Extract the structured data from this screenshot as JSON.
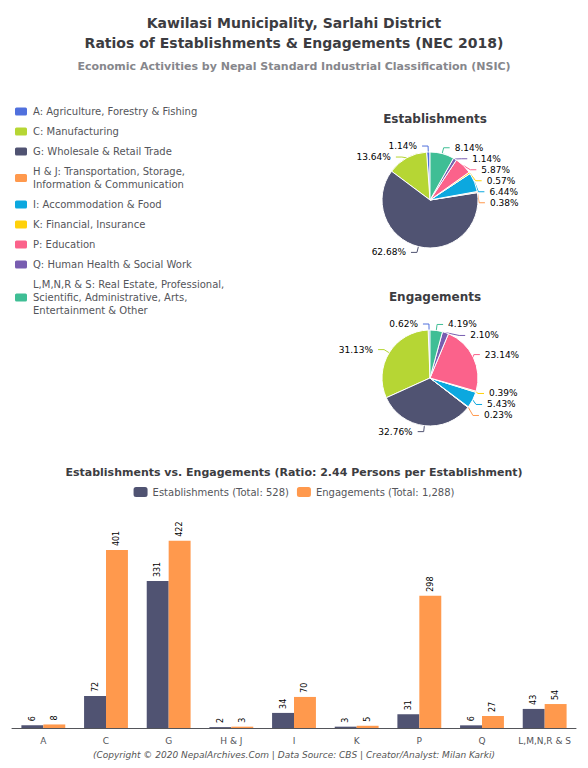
{
  "title": "Kawilasi Municipality, Sarlahi District\nRatios of Establishments & Engagements (NEC 2018)",
  "subtitle": "Economic Activities by Nepal Standard Industrial Classification (NSIC)",
  "annotations": [
    "(Copyright © 2020 NepalArchives.Com | Data Source: CBS | Creator/Analyst: Milan Karki)"
  ],
  "chart_data": [
    {
      "type": "pie",
      "title": "Establishments",
      "categories": [
        "A: Agriculture, Forestry & Fishing",
        "C: Manufacturing",
        "G: Wholesale & Retail Trade",
        "H & J: Transportation, Storage,\nInformation & Communication",
        "I: Accommodation & Food",
        "K: Financial, Insurance",
        "P: Education",
        "Q: Human Health & Social Work",
        "L,M,N,R & S: Real Estate, Professional,\nScientific, Administrative, Arts,\nEntertainment & Other"
      ],
      "values": [
        1.14,
        13.64,
        62.68,
        0.38,
        6.44,
        0.57,
        5.87,
        1.14,
        8.14
      ],
      "value_labels": [
        "1.14%",
        "13.64%",
        "62.68%",
        "0.38%",
        "6.44%",
        "0.57%",
        "5.87%",
        "1.14%",
        "8.14%"
      ],
      "data_labels": true,
      "legend": "left"
    },
    {
      "type": "pie",
      "title": "Engagements",
      "categories": [
        "A: Agriculture, Forestry & Fishing",
        "C: Manufacturing",
        "G: Wholesale & Retail Trade",
        "H & J: Transportation, Storage,\nInformation & Communication",
        "I: Accommodation & Food",
        "K: Financial, Insurance",
        "P: Education",
        "Q: Human Health & Social Work",
        "L,M,N,R & S: Real Estate, Professional,\nScientific, Administrative, Arts,\nEntertainment & Other"
      ],
      "values": [
        0.62,
        31.13,
        32.76,
        0.23,
        5.43,
        0.39,
        23.14,
        2.1,
        4.19
      ],
      "value_labels": [
        "0.62%",
        "31.13%",
        "32.76%",
        "0.23%",
        "5.43%",
        "0.39%",
        "23.14%",
        "2.10%",
        "4.19%"
      ],
      "data_labels": true,
      "legend": "left"
    },
    {
      "type": "bar",
      "title": "Establishments vs. Engagements (Ratio: 2.44 Persons per Establishment)",
      "categories": [
        "A",
        "C",
        "G",
        "H & J",
        "I",
        "K",
        "P",
        "Q",
        "L,M,N,R & S"
      ],
      "series": [
        {
          "name": "Establishments (Total: 528)",
          "values": [
            6,
            72,
            331,
            2,
            34,
            3,
            31,
            6,
            43
          ]
        },
        {
          "name": "Engagements (Total: 1,288)",
          "values": [
            8,
            401,
            422,
            3,
            70,
            5,
            298,
            27,
            54
          ]
        }
      ],
      "ylim": [
        0,
        480
      ],
      "tick_labels": "x",
      "data_labels": true,
      "grid": false,
      "legend": "top"
    }
  ]
}
